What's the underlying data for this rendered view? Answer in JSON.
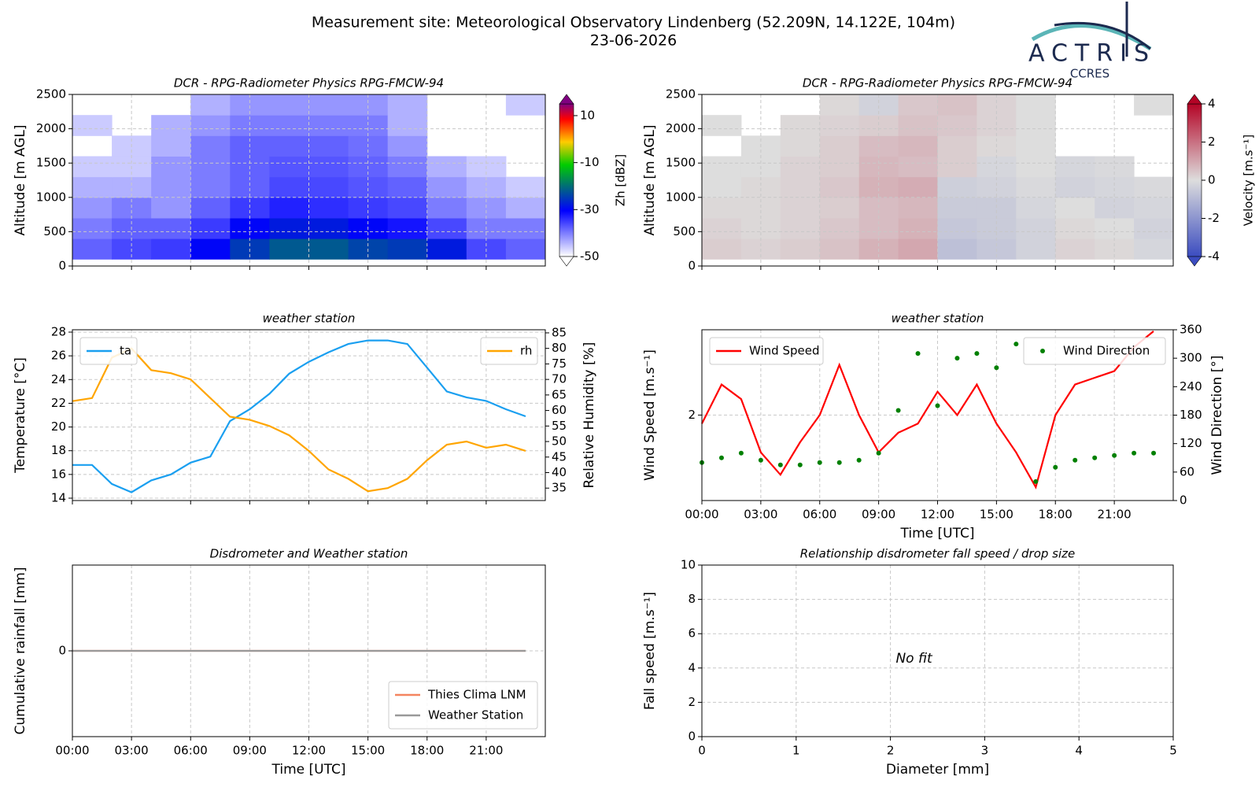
{
  "header": {
    "title": "Measurement site: Meteorological Observatory Lindenberg (52.209N, 14.122E, 104m)",
    "date": "23-06-2026",
    "logo": "ACTRIS",
    "logo_sub": "CCRES"
  },
  "chart_data": [
    {
      "type": "heatmap",
      "title": "DCR - RPG-Radiometer Physics RPG-FMCW-94",
      "ylabel": "Altitude [m AGL]",
      "colorbar_label": "Zh [dBZ]",
      "colormap": "reflectivity",
      "x": [
        1,
        3,
        5,
        7,
        9,
        11,
        13,
        15,
        17,
        19,
        21,
        23
      ],
      "y": [
        250,
        550,
        850,
        1150,
        1450,
        1750,
        2050,
        2350
      ],
      "values": [
        [
          -38,
          -36,
          -35,
          -30,
          -25,
          -22,
          -22,
          -24,
          -25,
          -28,
          -36,
          -38
        ],
        [
          -40,
          -38,
          -38,
          -35,
          -30,
          -28,
          -28,
          -30,
          -32,
          -36,
          -40,
          -40
        ],
        [
          -42,
          -40,
          -42,
          -38,
          -35,
          -33,
          -34,
          -35,
          -36,
          -40,
          -42,
          -44
        ],
        [
          -44,
          -44,
          -42,
          -40,
          -38,
          -36,
          -36,
          -37,
          -38,
          -42,
          -44,
          -46
        ],
        [
          -46,
          -46,
          -42,
          -40,
          -38,
          -37,
          -37,
          -38,
          -40,
          -44,
          -46,
          null
        ],
        [
          null,
          -46,
          -44,
          -40,
          -38,
          -38,
          -38,
          -39,
          -42,
          null,
          null,
          null
        ],
        [
          -46,
          null,
          -44,
          -42,
          -40,
          -40,
          -40,
          -40,
          -44,
          null,
          null,
          null
        ],
        [
          null,
          null,
          null,
          -44,
          -42,
          -42,
          -42,
          -42,
          -44,
          null,
          null,
          -46
        ]
      ],
      "xlim": [
        0,
        24
      ],
      "xticks": [
        0,
        3,
        6,
        9,
        12,
        15,
        18,
        21
      ],
      "xticklabels": false,
      "ylim": [
        0,
        2500
      ],
      "yticks": [
        0,
        500,
        1000,
        1500,
        2000,
        2500
      ],
      "clim": [
        -50,
        15
      ],
      "cticks": [
        -50,
        -30,
        -10,
        10
      ],
      "grid": true
    },
    {
      "type": "heatmap",
      "title": "DCR - RPG-Radiometer Physics RPG-FMCW-94",
      "ylabel": "Altitude [m AGL]",
      "colorbar_label": "Velocity [m.s⁻¹]",
      "colormap": "coolwarm",
      "x": [
        1,
        3,
        5,
        7,
        9,
        11,
        13,
        15,
        17,
        19,
        21,
        23
      ],
      "y": [
        250,
        550,
        850,
        1150,
        1450,
        1750,
        2050,
        2350
      ],
      "values": [
        [
          0.3,
          0.2,
          0.3,
          0.5,
          0.8,
          1.0,
          -0.8,
          -0.6,
          -0.3,
          0.2,
          0.1,
          -0.2
        ],
        [
          0.2,
          0.1,
          0.2,
          0.4,
          0.6,
          0.8,
          -0.6,
          -0.5,
          -0.3,
          0.1,
          0,
          -0.3
        ],
        [
          0.1,
          0.1,
          0.2,
          0.3,
          0.6,
          0.7,
          -0.5,
          -0.5,
          -0.2,
          0,
          -0.3,
          -0.2
        ],
        [
          0,
          0.1,
          0.2,
          0.4,
          0.8,
          0.9,
          -0.4,
          -0.3,
          -0.1,
          -0.3,
          -0.2,
          -0.1
        ],
        [
          0,
          0,
          0.2,
          0.3,
          0.7,
          0.6,
          0.3,
          -0.2,
          0,
          -0.2,
          -0.1,
          null
        ],
        [
          null,
          0,
          0.1,
          0.3,
          0.6,
          0.7,
          0.3,
          0.1,
          0,
          null,
          null,
          null
        ],
        [
          0,
          null,
          0.1,
          0.2,
          0.3,
          0.5,
          0.4,
          0.2,
          0,
          null,
          null,
          null
        ],
        [
          null,
          null,
          null,
          0.1,
          -0.3,
          0.4,
          0.5,
          0.2,
          0,
          null,
          null,
          0
        ]
      ],
      "xlim": [
        0,
        24
      ],
      "xticks": [
        0,
        3,
        6,
        9,
        12,
        15,
        18,
        21
      ],
      "xticklabels": false,
      "ylim": [
        0,
        2500
      ],
      "yticks": [
        0,
        500,
        1000,
        1500,
        2000,
        2500
      ],
      "clim": [
        -4,
        4
      ],
      "cticks": [
        -4,
        -2,
        0,
        2,
        4
      ],
      "grid": true
    },
    {
      "type": "line",
      "title": "weather station",
      "ylabel": "Temperature [°C]",
      "y2label": "Relative Humidity [%]",
      "x": [
        0,
        1,
        2,
        3,
        4,
        5,
        6,
        7,
        8,
        9,
        10,
        11,
        12,
        13,
        14,
        15,
        16,
        17,
        18,
        19,
        20,
        21,
        22,
        23
      ],
      "series": [
        {
          "name": "ta",
          "color": "#1a9ff0",
          "style": "line",
          "legend": "upper left",
          "values": [
            16.8,
            16.8,
            15.2,
            14.5,
            15.5,
            16,
            17,
            17.5,
            20.5,
            21.5,
            22.8,
            24.5,
            25.5,
            26.3,
            27,
            27.3,
            27.3,
            27,
            25,
            23,
            22.5,
            22.2,
            21.5,
            20.9
          ]
        },
        {
          "name": "rh",
          "color": "#ffa500",
          "style": "line",
          "axis": "y2",
          "legend": "upper right",
          "values": [
            63,
            64,
            77,
            80,
            73,
            72,
            70,
            64,
            58,
            57,
            55,
            52,
            47,
            41,
            38,
            34,
            35,
            38,
            44,
            49,
            50,
            48,
            49,
            47
          ]
        }
      ],
      "xlim": [
        0,
        24
      ],
      "xticks": [
        0,
        3,
        6,
        9,
        12,
        15,
        18,
        21
      ],
      "xticklabels": false,
      "ylim": [
        13.8,
        28.2
      ],
      "yticks": [
        14,
        16,
        18,
        20,
        22,
        24,
        26,
        28
      ],
      "y2lim": [
        31,
        86
      ],
      "y2ticks": [
        35,
        40,
        45,
        50,
        55,
        60,
        65,
        70,
        75,
        80,
        85
      ],
      "grid": true
    },
    {
      "type": "line",
      "title": "weather station",
      "ylabel": "Wind Speed [m.s⁻¹]",
      "y2label": "Wind Direction [°]",
      "xlabel": "Time [UTC]",
      "x": [
        0,
        1,
        2,
        3,
        4,
        5,
        6,
        7,
        8,
        9,
        10,
        11,
        12,
        13,
        14,
        15,
        16,
        17,
        18,
        19,
        20,
        21,
        22,
        23
      ],
      "series": [
        {
          "name": "Wind Speed",
          "color": "#ff0000",
          "style": "line",
          "legend": "upper left",
          "values": [
            1.9,
            2.4,
            2.2,
            1.6,
            1.4,
            1.7,
            2.0,
            2.7,
            2.0,
            1.6,
            1.8,
            1.9,
            2.3,
            2.0,
            2.4,
            1.9,
            1.6,
            1.3,
            2.0,
            2.4,
            2.5,
            2.6,
            3.0,
            3.3
          ]
        },
        {
          "name": "Wind Direction",
          "color": "#008000",
          "style": "markers",
          "axis": "y2",
          "legend": "upper right",
          "values": [
            80,
            90,
            100,
            85,
            75,
            75,
            80,
            80,
            85,
            100,
            190,
            310,
            200,
            300,
            310,
            280,
            330,
            40,
            70,
            85,
            90,
            95,
            100,
            100
          ]
        }
      ],
      "xlim": [
        0,
        24
      ],
      "xticks": [
        {
          "value": 0,
          "label": "00:00"
        },
        {
          "value": 3,
          "label": "03:00"
        },
        {
          "value": 6,
          "label": "06:00"
        },
        {
          "value": 9,
          "label": "09:00"
        },
        {
          "value": 12,
          "label": "12:00"
        },
        {
          "value": 15,
          "label": "15:00"
        },
        {
          "value": 18,
          "label": "18:00"
        },
        {
          "value": 21,
          "label": "21:00"
        }
      ],
      "ylim": [
        1.2,
        3.33
      ],
      "yticks": [
        2
      ],
      "ylog": true,
      "y2lim": [
        0,
        360
      ],
      "y2ticks": [
        0,
        60,
        120,
        180,
        240,
        300,
        360
      ],
      "grid": true
    },
    {
      "type": "line",
      "title": "Disdrometer and Weather station",
      "ylabel": "Cumulative rainfall [mm]",
      "xlabel": "Time [UTC]",
      "x": [
        0,
        1,
        2,
        3,
        4,
        5,
        6,
        7,
        8,
        9,
        10,
        11,
        12,
        13,
        14,
        15,
        16,
        17,
        18,
        19,
        20,
        21,
        22,
        23
      ],
      "series": [
        {
          "name": "Thies Clima LNM",
          "color": "#f4845f",
          "style": "line",
          "legend": "lower right",
          "values": [
            0,
            0,
            0,
            0,
            0,
            0,
            0,
            0,
            0,
            0,
            0,
            0,
            0,
            0,
            0,
            0,
            0,
            0,
            0,
            0,
            0,
            0,
            0,
            0
          ]
        },
        {
          "name": "Weather Station",
          "color": "#999999",
          "style": "line",
          "legend": "lower right",
          "values": [
            0,
            0,
            0,
            0,
            0,
            0,
            0,
            0,
            0,
            0,
            0,
            0,
            0,
            0,
            0,
            0,
            0,
            0,
            0,
            0,
            0,
            0,
            0,
            0
          ]
        }
      ],
      "xlim": [
        0,
        24
      ],
      "xticks": [
        {
          "value": 0,
          "label": "00:00"
        },
        {
          "value": 3,
          "label": "03:00"
        },
        {
          "value": 6,
          "label": "06:00"
        },
        {
          "value": 9,
          "label": "09:00"
        },
        {
          "value": 12,
          "label": "12:00"
        },
        {
          "value": 15,
          "label": "15:00"
        },
        {
          "value": 18,
          "label": "18:00"
        },
        {
          "value": 21,
          "label": "21:00"
        }
      ],
      "ylim": [
        -1,
        1
      ],
      "yticks": [
        0
      ],
      "grid": true
    },
    {
      "type": "scatter",
      "title": "Relationship disdrometer fall speed / drop size",
      "ylabel": "Fall speed [m.s⁻¹]",
      "xlabel": "Diameter [mm]",
      "annotation": "No fit",
      "xlim": [
        0,
        5
      ],
      "xticks": [
        0,
        1,
        2,
        3,
        4,
        5
      ],
      "ylim": [
        0,
        10
      ],
      "yticks": [
        0,
        2,
        4,
        6,
        8,
        10
      ],
      "grid": true
    }
  ]
}
